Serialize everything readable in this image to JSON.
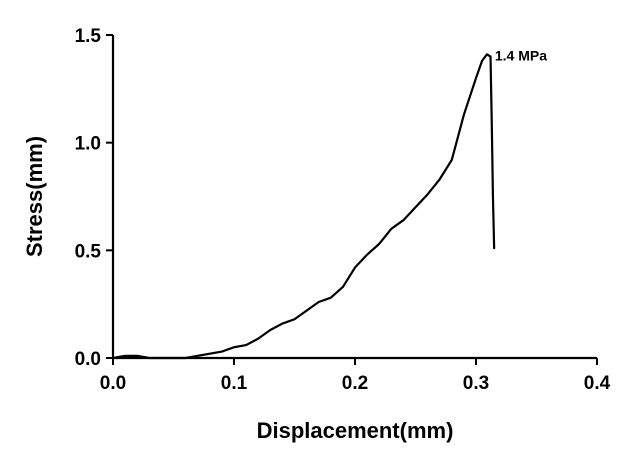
{
  "chart_data": {
    "type": "line",
    "title": "",
    "xlabel": "Displacement(mm)",
    "ylabel": "Stress(mm)",
    "xlim": [
      0.0,
      0.4
    ],
    "ylim": [
      0.0,
      1.5
    ],
    "x_ticks": [
      "0.0",
      "0.1",
      "0.2",
      "0.3",
      "0.4"
    ],
    "y_ticks": [
      "0.0",
      "0.5",
      "1.0",
      "1.5"
    ],
    "grid": false,
    "annotation": {
      "text": "1.4 MPa",
      "x": 0.309,
      "y": 1.41
    },
    "series": [
      {
        "x": [
          0.0,
          0.01,
          0.02,
          0.03,
          0.04,
          0.05,
          0.06,
          0.07,
          0.08,
          0.09,
          0.1,
          0.11,
          0.12,
          0.13,
          0.14,
          0.15,
          0.16,
          0.17,
          0.18,
          0.19,
          0.2,
          0.21,
          0.22,
          0.23,
          0.24,
          0.25,
          0.26,
          0.27,
          0.28,
          0.29,
          0.3,
          0.305,
          0.309,
          0.312,
          0.313,
          0.314,
          0.315
        ],
        "y": [
          0.0,
          0.01,
          0.01,
          0.0,
          0.0,
          0.0,
          0.0,
          0.01,
          0.02,
          0.03,
          0.05,
          0.06,
          0.09,
          0.13,
          0.16,
          0.18,
          0.22,
          0.26,
          0.28,
          0.33,
          0.42,
          0.48,
          0.53,
          0.6,
          0.64,
          0.7,
          0.76,
          0.83,
          0.92,
          1.13,
          1.3,
          1.38,
          1.41,
          1.4,
          1.1,
          0.75,
          0.51
        ]
      }
    ]
  }
}
